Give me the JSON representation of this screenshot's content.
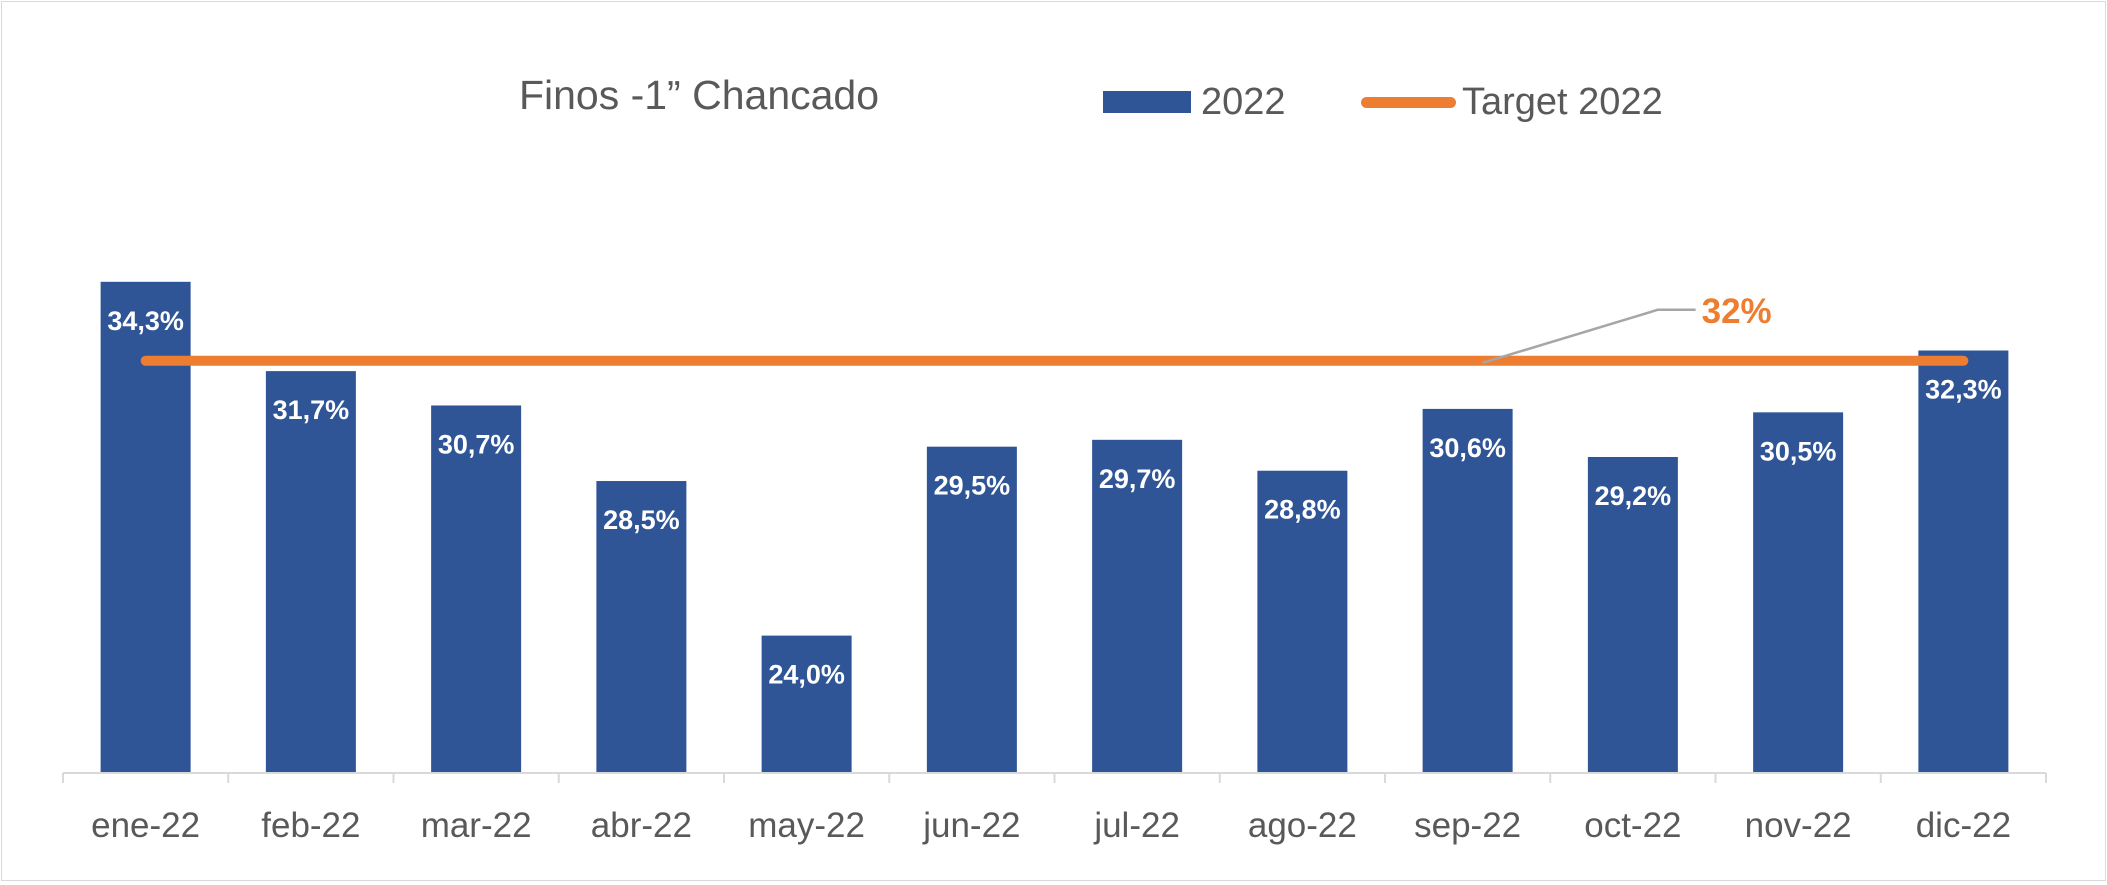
{
  "chart_data": {
    "type": "bar",
    "title": "Finos -1” Chancado",
    "categories": [
      "ene-22",
      "feb-22",
      "mar-22",
      "abr-22",
      "may-22",
      "jun-22",
      "jul-22",
      "ago-22",
      "sep-22",
      "oct-22",
      "nov-22",
      "dic-22"
    ],
    "series": [
      {
        "name": "2022",
        "type": "bar",
        "color": "#2F5597",
        "values": [
          34.3,
          31.7,
          30.7,
          28.5,
          24.0,
          29.5,
          29.7,
          28.8,
          30.6,
          29.2,
          30.5,
          32.3
        ],
        "labels": [
          "34,3%",
          "31,7%",
          "30,7%",
          "28,5%",
          "24,0%",
          "29,5%",
          "29,7%",
          "28,8%",
          "30,6%",
          "29,2%",
          "30,5%",
          "32,3%"
        ]
      },
      {
        "name": "Target 2022",
        "type": "line",
        "color": "#ED7D31",
        "value": 32,
        "label": "32%"
      }
    ],
    "ylim": [
      20,
      35.75
    ],
    "grid": false,
    "legend_position": "top"
  }
}
